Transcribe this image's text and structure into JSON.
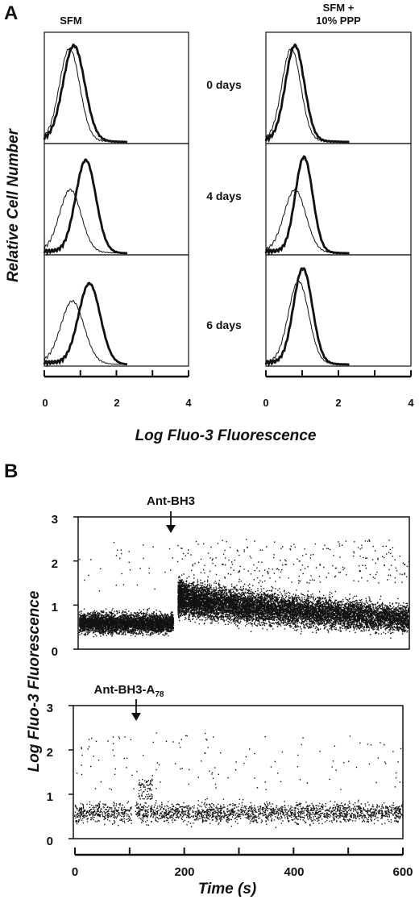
{
  "panel_a": {
    "letter": "A",
    "columns": [
      {
        "title_lines": [
          "SFM"
        ]
      },
      {
        "title_lines": [
          "SFM +",
          "10% PPP"
        ]
      }
    ],
    "row_labels": [
      "0 days",
      "4 days",
      "6 days"
    ],
    "ylabel": "Relative Cell Number",
    "xlabel": "Log Fluo-3 Fluorescence",
    "xticks": [
      "0",
      "2",
      "4"
    ]
  },
  "panel_b": {
    "letter": "B",
    "ylabel": "Log Fluo-3 Fluorescence",
    "xlabel": "Time (s)",
    "top_annotation": "Ant-BH3",
    "bottom_annotation": {
      "main": "Ant-BH3-A",
      "sub": "78"
    },
    "yticks": [
      "0",
      "1",
      "2",
      "3"
    ],
    "xticks": [
      "0",
      "200",
      "400",
      "600"
    ]
  },
  "colors": {
    "ink": "#111111",
    "background": "#ffffff"
  },
  "chart_data": [
    {
      "type": "line",
      "panel": "A",
      "title": "SFM",
      "rows": [
        {
          "label": "0 days",
          "series": [
            {
              "style": "thin",
              "mode": 0.7,
              "width": 0.28,
              "peak": 0.92
            },
            {
              "style": "thick",
              "mode": 0.82,
              "width": 0.3,
              "peak": 0.95
            }
          ]
        },
        {
          "label": "4 days",
          "series": [
            {
              "style": "thin",
              "mode": 0.72,
              "width": 0.3,
              "peak": 0.62
            },
            {
              "style": "thick",
              "mode": 1.15,
              "width": 0.28,
              "peak": 0.92
            }
          ]
        },
        {
          "label": "6 days",
          "series": [
            {
              "style": "thin",
              "mode": 0.78,
              "width": 0.32,
              "peak": 0.62
            },
            {
              "style": "thick",
              "mode": 1.25,
              "width": 0.3,
              "peak": 0.8
            }
          ]
        }
      ],
      "xlim": [
        0,
        4
      ]
    },
    {
      "type": "line",
      "panel": "A",
      "title": "SFM + 10% PPP",
      "rows": [
        {
          "label": "0 days",
          "series": [
            {
              "style": "thin",
              "mode": 0.7,
              "width": 0.26,
              "peak": 0.92
            },
            {
              "style": "thick",
              "mode": 0.8,
              "width": 0.26,
              "peak": 0.95
            }
          ]
        },
        {
          "label": "4 days",
          "series": [
            {
              "style": "thin",
              "mode": 0.8,
              "width": 0.3,
              "peak": 0.62
            },
            {
              "style": "thick",
              "mode": 1.05,
              "width": 0.24,
              "peak": 0.95
            }
          ]
        },
        {
          "label": "6 days",
          "series": [
            {
              "style": "thin",
              "mode": 0.9,
              "width": 0.28,
              "peak": 0.82
            },
            {
              "style": "thick",
              "mode": 1.02,
              "width": 0.26,
              "peak": 0.95
            }
          ]
        }
      ],
      "xlim": [
        0,
        4
      ]
    },
    {
      "type": "scatter",
      "panel": "B",
      "annotation": "Ant-BH3",
      "xlim": [
        0,
        600
      ],
      "ylim": [
        0,
        3
      ],
      "addition_time": 178,
      "baseline_mean": 0.6,
      "peak_mean": 1.2,
      "end_mean": 0.7
    },
    {
      "type": "scatter",
      "panel": "B",
      "annotation": "Ant-BH3-A78",
      "xlim": [
        0,
        600
      ],
      "ylim": [
        0,
        3
      ],
      "addition_time": 108,
      "baseline_mean": 0.6,
      "transient_peak": 1.2,
      "end_mean": 0.6
    }
  ]
}
